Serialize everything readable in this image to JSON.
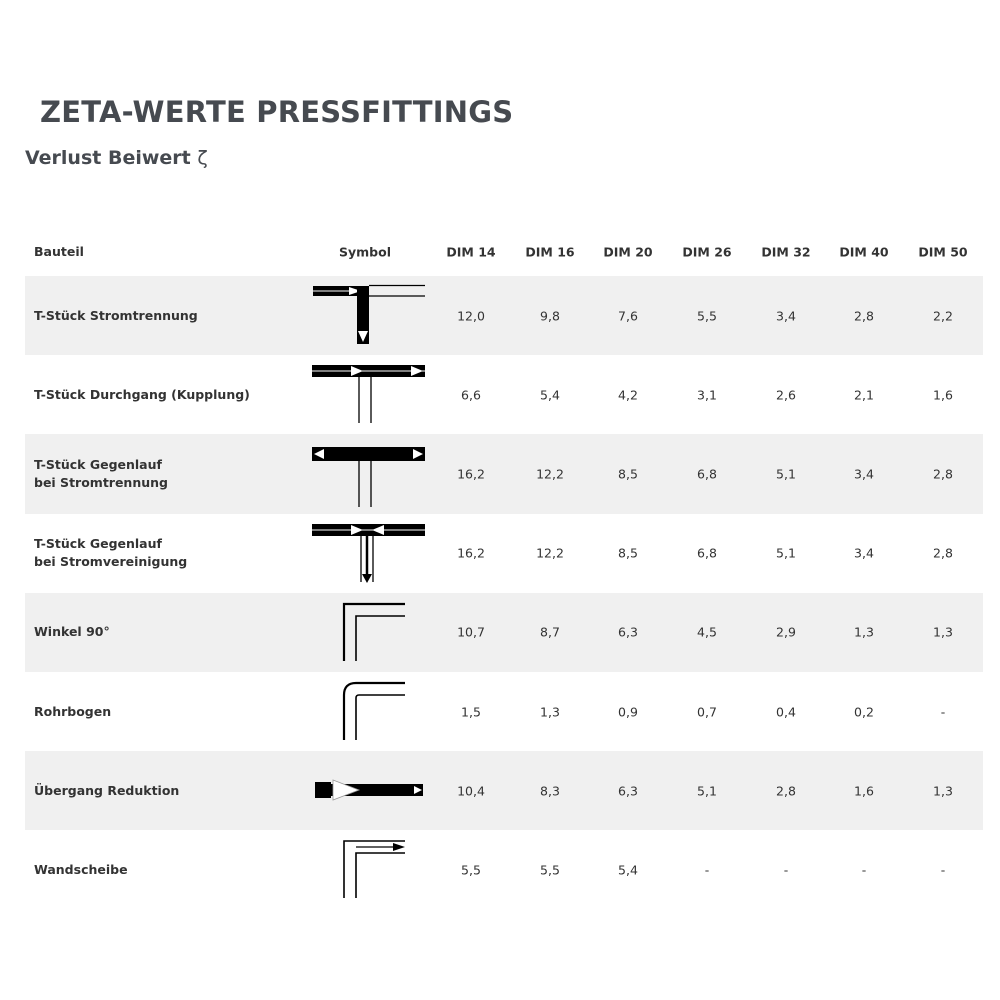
{
  "title": "ZETA-WERTE PRESSFITTINGS",
  "subtitle": "Verlust Beiwert",
  "subtitle_symbol": "ζ",
  "table": {
    "headers": [
      "Bauteil",
      "Symbol",
      "DIM 14",
      "DIM 16",
      "DIM 20",
      "DIM 26",
      "DIM 32",
      "DIM 40",
      "DIM 50"
    ],
    "rows": [
      {
        "name": [
          "T-Stück Stromtrennung"
        ],
        "icon": "tee-flow-separation-icon",
        "values": [
          "12,0",
          "9,8",
          "7,6",
          "5,5",
          "3,4",
          "2,8",
          "2,2"
        ]
      },
      {
        "name": [
          "T-Stück Durchgang (Kupplung)"
        ],
        "icon": "tee-passage-icon",
        "values": [
          "6,6",
          "5,4",
          "4,2",
          "3,1",
          "2,6",
          "2,1",
          "1,6"
        ]
      },
      {
        "name": [
          "T-Stück Gegenlauf",
          "bei Stromtrennung"
        ],
        "icon": "tee-counterflow-separation-icon",
        "values": [
          "16,2",
          "12,2",
          "8,5",
          "6,8",
          "5,1",
          "3,4",
          "2,8"
        ]
      },
      {
        "name": [
          "T-Stück Gegenlauf",
          "bei Stromvereinigung"
        ],
        "icon": "tee-counterflow-merge-icon",
        "values": [
          "16,2",
          "12,2",
          "8,5",
          "6,8",
          "5,1",
          "3,4",
          "2,8"
        ]
      },
      {
        "name": [
          "Winkel 90°"
        ],
        "icon": "elbow-90-icon",
        "values": [
          "10,7",
          "8,7",
          "6,3",
          "4,5",
          "2,9",
          "1,3",
          "1,3"
        ]
      },
      {
        "name": [
          "Rohrbogen"
        ],
        "icon": "pipe-bend-icon",
        "values": [
          "1,5",
          "1,3",
          "0,9",
          "0,7",
          "0,4",
          "0,2",
          "-"
        ]
      },
      {
        "name": [
          "Übergang Reduktion"
        ],
        "icon": "reducer-icon",
        "values": [
          "10,4",
          "8,3",
          "6,3",
          "5,1",
          "2,8",
          "1,6",
          "1,3"
        ]
      },
      {
        "name": [
          "Wandscheibe"
        ],
        "icon": "wall-plate-elbow-icon",
        "values": [
          "5,5",
          "5,5",
          "5,4",
          "-",
          "-",
          "-",
          "-"
        ]
      }
    ]
  },
  "colors": {
    "stripe": "#f0f0f0",
    "text": "#333333",
    "title": "#464a50"
  }
}
